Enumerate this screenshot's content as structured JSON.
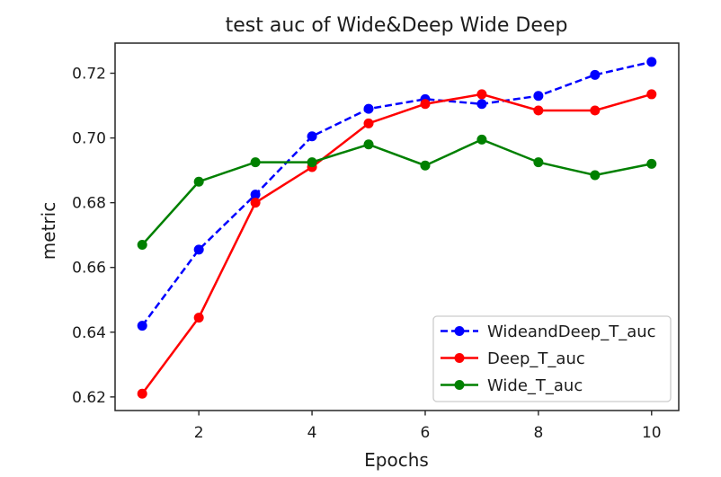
{
  "chart_data": {
    "type": "line",
    "title": "test auc of Wide&Deep Wide Deep",
    "xlabel": "Epochs",
    "ylabel": "metric",
    "x": [
      1,
      2,
      3,
      4,
      5,
      6,
      7,
      8,
      9,
      10
    ],
    "series": [
      {
        "name": "WideandDeep_T_auc",
        "color": "#0000ff",
        "linestyle": "dashed",
        "marker": "circle",
        "values": [
          0.642,
          0.6655,
          0.6825,
          0.7005,
          0.709,
          0.712,
          0.7105,
          0.713,
          0.7195,
          0.7235
        ]
      },
      {
        "name": "Deep_T_auc",
        "color": "#ff0000",
        "linestyle": "solid",
        "marker": "circle",
        "values": [
          0.621,
          0.6445,
          0.68,
          0.691,
          0.7045,
          0.7105,
          0.7135,
          0.7085,
          0.7085,
          0.7135
        ]
      },
      {
        "name": "Wide_T_auc",
        "color": "#008000",
        "linestyle": "solid",
        "marker": "circle",
        "values": [
          0.667,
          0.6865,
          0.6925,
          0.6925,
          0.698,
          0.6915,
          0.6995,
          0.6925,
          0.6885,
          0.692
        ]
      }
    ],
    "xticks": [
      2,
      4,
      6,
      8,
      10
    ],
    "yticks": [
      0.62,
      0.64,
      0.66,
      0.68,
      0.7,
      0.72
    ],
    "xlim": [
      0.52,
      10.48
    ],
    "ylim": [
      0.6158,
      0.7293
    ],
    "grid": false,
    "legend_position": "lower right",
    "spine_color": "#262626",
    "text_color": "#1c1c1c"
  }
}
